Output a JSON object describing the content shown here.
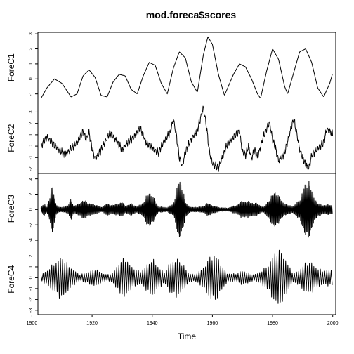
{
  "chart_data": {
    "type": "line",
    "title": "mod.foreca$scores",
    "xlabel": "Time",
    "xlim": [
      1902,
      2001
    ],
    "xticks": [
      1900,
      1920,
      1940,
      1960,
      1980,
      2000
    ],
    "grid": false,
    "panels": [
      {
        "name": "ForeC1",
        "ylim": [
          -1.6,
          3.1
        ],
        "yticks": [
          -1,
          0,
          1,
          2,
          3
        ],
        "series_kind": "smooth",
        "points": [
          [
            1903,
            -1.3
          ],
          [
            1905,
            -0.6
          ],
          [
            1907.5,
            0.0
          ],
          [
            1910,
            -0.3
          ],
          [
            1913,
            -1.2
          ],
          [
            1915,
            -1.0
          ],
          [
            1917,
            0.2
          ],
          [
            1919,
            0.6
          ],
          [
            1921,
            0.1
          ],
          [
            1923,
            -1.1
          ],
          [
            1925,
            -1.2
          ],
          [
            1927,
            -0.2
          ],
          [
            1929,
            0.3
          ],
          [
            1931,
            0.2
          ],
          [
            1933,
            -0.7
          ],
          [
            1935,
            -1.0
          ],
          [
            1937,
            0.2
          ],
          [
            1939,
            1.1
          ],
          [
            1941,
            0.9
          ],
          [
            1943,
            -0.3
          ],
          [
            1945,
            -1.0
          ],
          [
            1947,
            0.7
          ],
          [
            1949,
            1.8
          ],
          [
            1951,
            1.4
          ],
          [
            1953,
            -0.2
          ],
          [
            1955,
            -0.9
          ],
          [
            1957,
            1.6
          ],
          [
            1958.5,
            2.8
          ],
          [
            1960,
            2.3
          ],
          [
            1962,
            0.3
          ],
          [
            1964,
            -1.1
          ],
          [
            1967,
            0.3
          ],
          [
            1969,
            1.0
          ],
          [
            1971,
            0.8
          ],
          [
            1973,
            0.0
          ],
          [
            1975,
            -1.0
          ],
          [
            1976,
            -1.3
          ],
          [
            1978,
            0.5
          ],
          [
            1980,
            2.0
          ],
          [
            1982,
            1.3
          ],
          [
            1984,
            -0.5
          ],
          [
            1985,
            -1.0
          ],
          [
            1987,
            0.4
          ],
          [
            1989,
            1.8
          ],
          [
            1991,
            2.0
          ],
          [
            1993,
            1.1
          ],
          [
            1995,
            -0.6
          ],
          [
            1997,
            -1.2
          ],
          [
            1999,
            -0.3
          ],
          [
            2000,
            0.4
          ]
        ]
      },
      {
        "name": "ForeC2",
        "ylim": [
          -2.4,
          3.8
        ],
        "yticks": [
          -2,
          -1,
          0,
          1,
          2,
          3
        ],
        "series_kind": "jagged",
        "points": [
          [
            1903,
            0.0
          ],
          [
            1905,
            0.8
          ],
          [
            1907,
            0.2
          ],
          [
            1909,
            -0.3
          ],
          [
            1911,
            -0.8
          ],
          [
            1913,
            -0.2
          ],
          [
            1915,
            0.3
          ],
          [
            1917,
            1.3
          ],
          [
            1918,
            0.6
          ],
          [
            1919,
            1.2
          ],
          [
            1920,
            -0.2
          ],
          [
            1921,
            -1.1
          ],
          [
            1922,
            -0.8
          ],
          [
            1924,
            0.2
          ],
          [
            1926,
            1.2
          ],
          [
            1928,
            0.5
          ],
          [
            1930,
            -0.3
          ],
          [
            1932,
            0.4
          ],
          [
            1934,
            0.8
          ],
          [
            1936,
            1.6
          ],
          [
            1938,
            0.3
          ],
          [
            1940,
            -0.2
          ],
          [
            1942,
            -0.6
          ],
          [
            1944,
            0.5
          ],
          [
            1946,
            1.2
          ],
          [
            1947,
            2.4
          ],
          [
            1948,
            1.0
          ],
          [
            1949,
            -1.0
          ],
          [
            1950,
            -1.8
          ],
          [
            1951,
            -0.5
          ],
          [
            1953,
            0.6
          ],
          [
            1955,
            1.4
          ],
          [
            1957,
            3.4
          ],
          [
            1958,
            1.8
          ],
          [
            1959,
            -0.5
          ],
          [
            1960,
            -1.5
          ],
          [
            1962,
            -1.9
          ],
          [
            1963,
            -1.2
          ],
          [
            1965,
            0.2
          ],
          [
            1967,
            0.8
          ],
          [
            1969,
            1.3
          ],
          [
            1970,
            -0.5
          ],
          [
            1971,
            -0.8
          ],
          [
            1972,
            0.0
          ],
          [
            1973,
            -1.1
          ],
          [
            1974,
            -0.3
          ],
          [
            1975,
            -1.0
          ],
          [
            1977,
            0.9
          ],
          [
            1979,
            2.1
          ],
          [
            1980,
            0.6
          ],
          [
            1981,
            -0.2
          ],
          [
            1982,
            -1.3
          ],
          [
            1984,
            -0.6
          ],
          [
            1985,
            0.4
          ],
          [
            1987,
            2.4
          ],
          [
            1988,
            1.2
          ],
          [
            1989,
            -0.3
          ],
          [
            1990,
            -1.0
          ],
          [
            1991,
            -1.6
          ],
          [
            1992,
            -2.0
          ],
          [
            1993,
            -0.8
          ],
          [
            1995,
            -0.2
          ],
          [
            1997,
            0.3
          ],
          [
            1998,
            1.5
          ],
          [
            2000,
            1.1
          ]
        ]
      },
      {
        "name": "ForeC3",
        "ylim": [
          -4.5,
          4.7
        ],
        "yticks": [
          -4,
          -2,
          0,
          2,
          4
        ],
        "series_kind": "oscillation",
        "period": 0.33,
        "envelope": [
          [
            1903,
            0.3
          ],
          [
            1904,
            0.8
          ],
          [
            1905,
            0.4
          ],
          [
            1907,
            3.3
          ],
          [
            1908,
            0.8
          ],
          [
            1909,
            0.3
          ],
          [
            1912,
            0.5
          ],
          [
            1913,
            1.6
          ],
          [
            1914,
            0.4
          ],
          [
            1916,
            1.0
          ],
          [
            1918,
            1.3
          ],
          [
            1919,
            0.8
          ],
          [
            1921,
            0.7
          ],
          [
            1923,
            0.3
          ],
          [
            1925,
            0.8
          ],
          [
            1927,
            0.6
          ],
          [
            1929,
            0.9
          ],
          [
            1930,
            1.0
          ],
          [
            1931,
            0.5
          ],
          [
            1933,
            0.8
          ],
          [
            1935,
            0.4
          ],
          [
            1937,
            1.0
          ],
          [
            1939,
            2.6
          ],
          [
            1941,
            1.2
          ],
          [
            1942,
            0.4
          ],
          [
            1945,
            0.3
          ],
          [
            1947,
            0.8
          ],
          [
            1949,
            4.2
          ],
          [
            1950,
            3.4
          ],
          [
            1951,
            1.0
          ],
          [
            1953,
            0.3
          ],
          [
            1957,
            0.4
          ],
          [
            1958,
            0.9
          ],
          [
            1960,
            0.6
          ],
          [
            1962,
            0.3
          ],
          [
            1965,
            0.2
          ],
          [
            1968,
            0.6
          ],
          [
            1970,
            1.2
          ],
          [
            1973,
            1.0
          ],
          [
            1975,
            0.8
          ],
          [
            1977,
            0.3
          ],
          [
            1979,
            1.5
          ],
          [
            1981,
            2.6
          ],
          [
            1983,
            1.2
          ],
          [
            1985,
            0.6
          ],
          [
            1987,
            0.5
          ],
          [
            1989,
            1.4
          ],
          [
            1991,
            3.6
          ],
          [
            1992,
            4.3
          ],
          [
            1993,
            2.5
          ],
          [
            1995,
            0.9
          ],
          [
            1997,
            0.6
          ],
          [
            1999,
            0.7
          ],
          [
            2000,
            0.6
          ]
        ]
      },
      {
        "name": "ForeC4",
        "ylim": [
          -3.4,
          3.1
        ],
        "yticks": [
          -3,
          -2,
          -1,
          0,
          1,
          2
        ],
        "series_kind": "oscillation",
        "period": 0.72,
        "envelope": [
          [
            1903,
            0.3
          ],
          [
            1905,
            0.7
          ],
          [
            1908,
            1.6
          ],
          [
            1910,
            2.1
          ],
          [
            1912,
            1.3
          ],
          [
            1914,
            0.7
          ],
          [
            1916,
            0.3
          ],
          [
            1919,
            0.6
          ],
          [
            1921,
            0.9
          ],
          [
            1923,
            0.5
          ],
          [
            1925,
            0.3
          ],
          [
            1927,
            0.5
          ],
          [
            1929,
            1.5
          ],
          [
            1931,
            2.0
          ],
          [
            1933,
            1.1
          ],
          [
            1936,
            0.6
          ],
          [
            1938,
            1.2
          ],
          [
            1940,
            1.9
          ],
          [
            1942,
            1.1
          ],
          [
            1944,
            0.5
          ],
          [
            1946,
            1.5
          ],
          [
            1948,
            1.9
          ],
          [
            1950,
            1.4
          ],
          [
            1952,
            0.5
          ],
          [
            1954,
            0.3
          ],
          [
            1957,
            1.0
          ],
          [
            1959,
            2.0
          ],
          [
            1961,
            2.3
          ],
          [
            1963,
            1.3
          ],
          [
            1965,
            0.4
          ],
          [
            1968,
            0.4
          ],
          [
            1970,
            0.7
          ],
          [
            1972,
            0.5
          ],
          [
            1974,
            0.3
          ],
          [
            1976,
            0.6
          ],
          [
            1979,
            1.4
          ],
          [
            1981,
            2.7
          ],
          [
            1983,
            2.6
          ],
          [
            1985,
            1.4
          ],
          [
            1987,
            0.4
          ],
          [
            1989,
            0.8
          ],
          [
            1991,
            1.5
          ],
          [
            1993,
            1.5
          ],
          [
            1995,
            0.9
          ],
          [
            1997,
            0.7
          ],
          [
            1999,
            0.8
          ],
          [
            2000,
            0.8
          ]
        ]
      }
    ]
  }
}
